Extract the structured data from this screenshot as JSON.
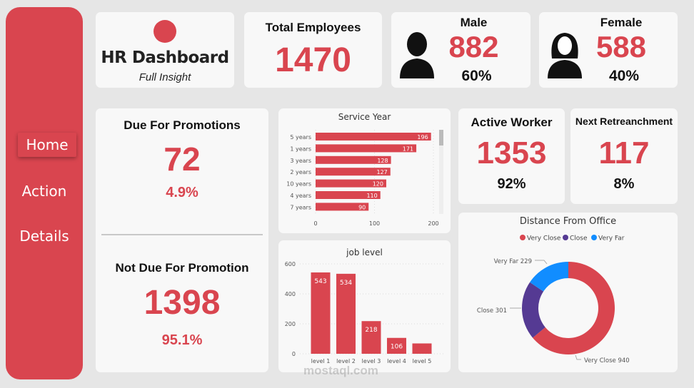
{
  "sidebar": {
    "items": [
      {
        "label": "Home",
        "active": true
      },
      {
        "label": "Action"
      },
      {
        "label": "Details"
      }
    ]
  },
  "header": {
    "title": "HR Dashboard",
    "subtitle": "Full Insight"
  },
  "total": {
    "label": "Total Employees",
    "value": "1470"
  },
  "male": {
    "label": "Male",
    "value": "882",
    "pct": "60%",
    "icon": "male-user-icon"
  },
  "female": {
    "label": "Female",
    "value": "588",
    "pct": "40%",
    "icon": "female-user-icon"
  },
  "promotion": {
    "due_label": "Due For Promotions",
    "due_value": "72",
    "due_pct": "4.9%",
    "not_label": "Not Due For Promotion",
    "not_value": "1398",
    "not_pct": "95.1%"
  },
  "active": {
    "label": "Active Worker",
    "value": "1353",
    "pct": "92%"
  },
  "retrench": {
    "label": "Next Retreanchment",
    "value": "117",
    "pct": "8%"
  },
  "colors": {
    "accent": "#d9454f",
    "purple": "#553a93",
    "blue": "#118dff"
  },
  "watermark": "mostaql.com",
  "chart_data": [
    {
      "type": "bar",
      "orientation": "horizontal",
      "title": "Service Year",
      "categories": [
        "5 years",
        "1 years",
        "3 years",
        "2 years",
        "10 years",
        "4 years",
        "7 years"
      ],
      "values": [
        196,
        171,
        128,
        127,
        120,
        110,
        90
      ],
      "xlim": [
        0,
        200
      ],
      "xticks": [
        "0",
        "100",
        "200"
      ],
      "grid": true
    },
    {
      "type": "bar",
      "title": "job level",
      "categories": [
        "level 1",
        "level 2",
        "level 3",
        "level 4",
        "level 5"
      ],
      "values": [
        543,
        534,
        218,
        106,
        69
      ],
      "data_labels": [
        "543",
        "534",
        "218",
        "106",
        ""
      ],
      "ylim": [
        0,
        600
      ],
      "yticks": [
        "0",
        "200",
        "400",
        "600"
      ],
      "grid": true
    },
    {
      "type": "pie",
      "donut": true,
      "title": "Distance From Office",
      "legend": "top",
      "categories": [
        "Very Close",
        "Close",
        "Very Far"
      ],
      "values": [
        940,
        301,
        229
      ],
      "slice_labels": [
        "Very Close 940",
        "Close 301",
        "Very Far 229"
      ],
      "colors": [
        "#d9454f",
        "#553a93",
        "#118dff"
      ]
    }
  ]
}
